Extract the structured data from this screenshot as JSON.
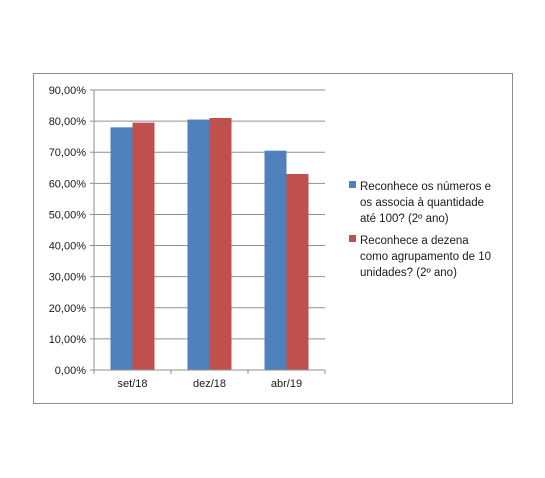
{
  "chart_data": {
    "type": "bar",
    "categories": [
      "set/18",
      "dez/18",
      "abr/19"
    ],
    "series": [
      {
        "name": "Reconhece os números e os associa à quantidade até 100? (2º ano)",
        "legend_lines": [
          "Reconhece os números e",
          "os associa à quantidade",
          "até 100? (2º ano)"
        ],
        "color": "#4f81bd",
        "values": [
          78.0,
          80.5,
          70.5
        ]
      },
      {
        "name": "Reconhece a dezena como agrupamento de 10 unidades? (2º ano)",
        "legend_lines": [
          "Reconhece a dezena",
          "como agrupamento de 10",
          "unidades? (2º ano)"
        ],
        "color": "#c0504d",
        "values": [
          79.5,
          81.0,
          63.0
        ]
      }
    ],
    "y_ticks": [
      "0,00%",
      "10,00%",
      "20,00%",
      "30,00%",
      "40,00%",
      "50,00%",
      "60,00%",
      "70,00%",
      "80,00%",
      "90,00%"
    ],
    "ylim": [
      0,
      90
    ],
    "y_unit": "%",
    "grid": true,
    "legend_position": "right",
    "title": "",
    "xlabel": "",
    "ylabel": ""
  }
}
